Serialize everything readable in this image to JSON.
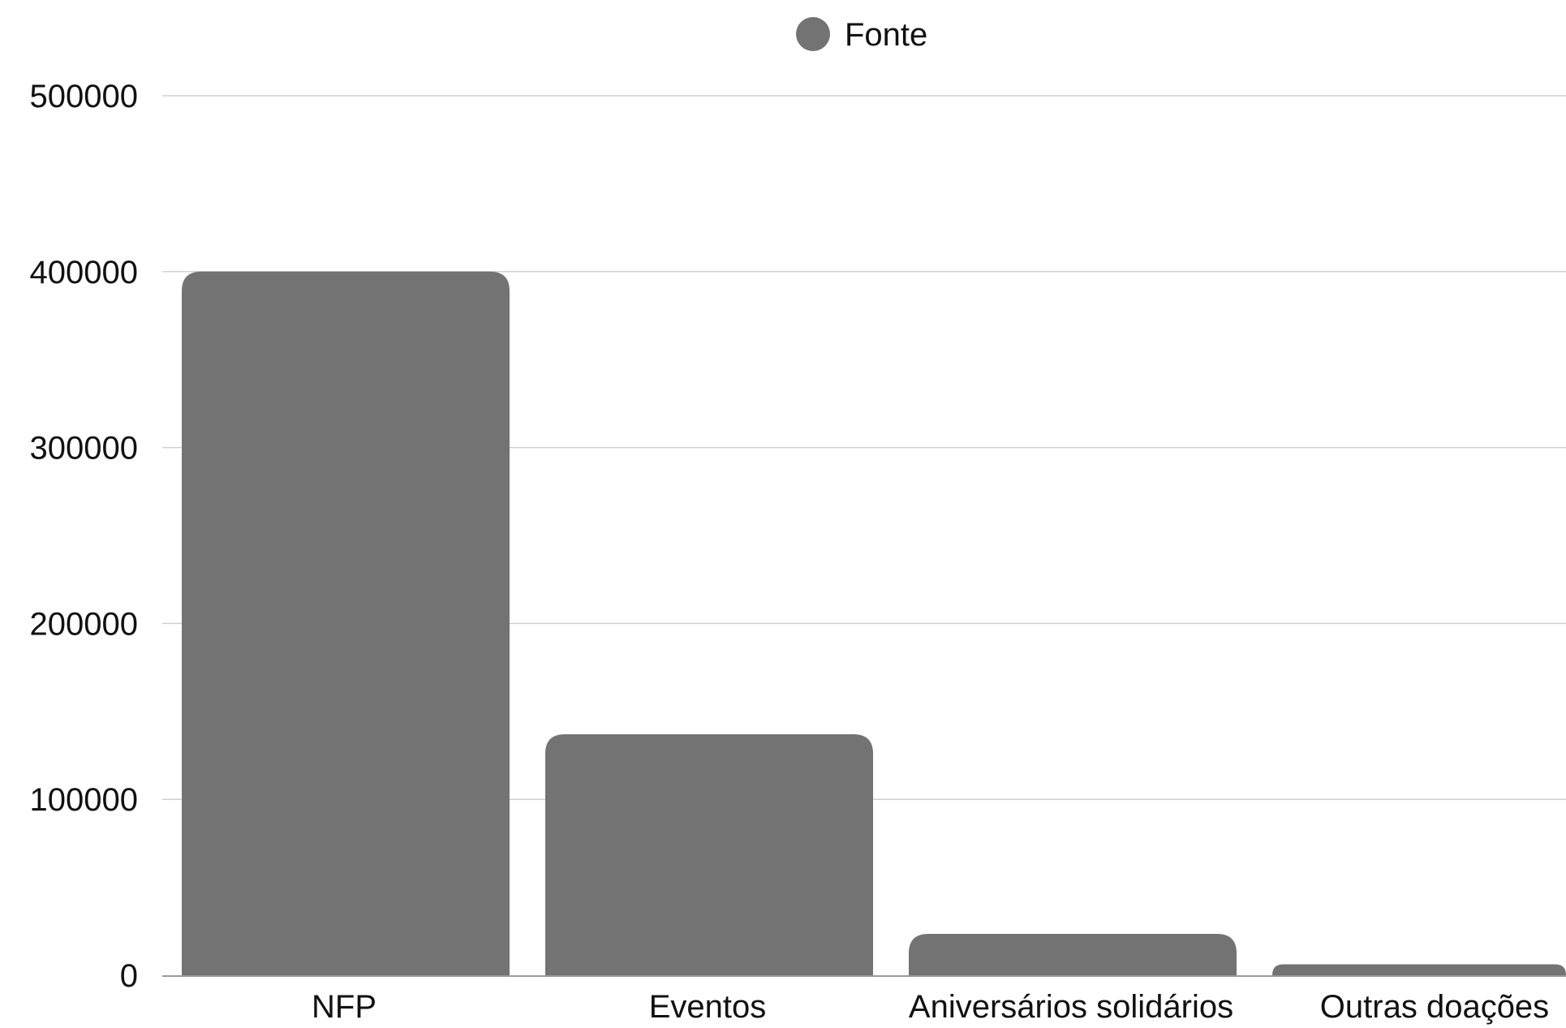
{
  "chart_data": {
    "type": "bar",
    "categories": [
      "NFP",
      "Eventos",
      "Aniversários solidários",
      "Outras doações"
    ],
    "series": [
      {
        "name": "Fonte",
        "values": [
          400000,
          137000,
          23500,
          6200
        ]
      }
    ],
    "yticks": [
      "0",
      "100000",
      "200000",
      "300000",
      "400000",
      "500000"
    ],
    "ylim": [
      0,
      500000
    ],
    "grid": true,
    "legend_position": "top-center",
    "bar_color": "#737373",
    "grid_color": "#d0d0d0",
    "axis_color": "#9a9a9a"
  }
}
